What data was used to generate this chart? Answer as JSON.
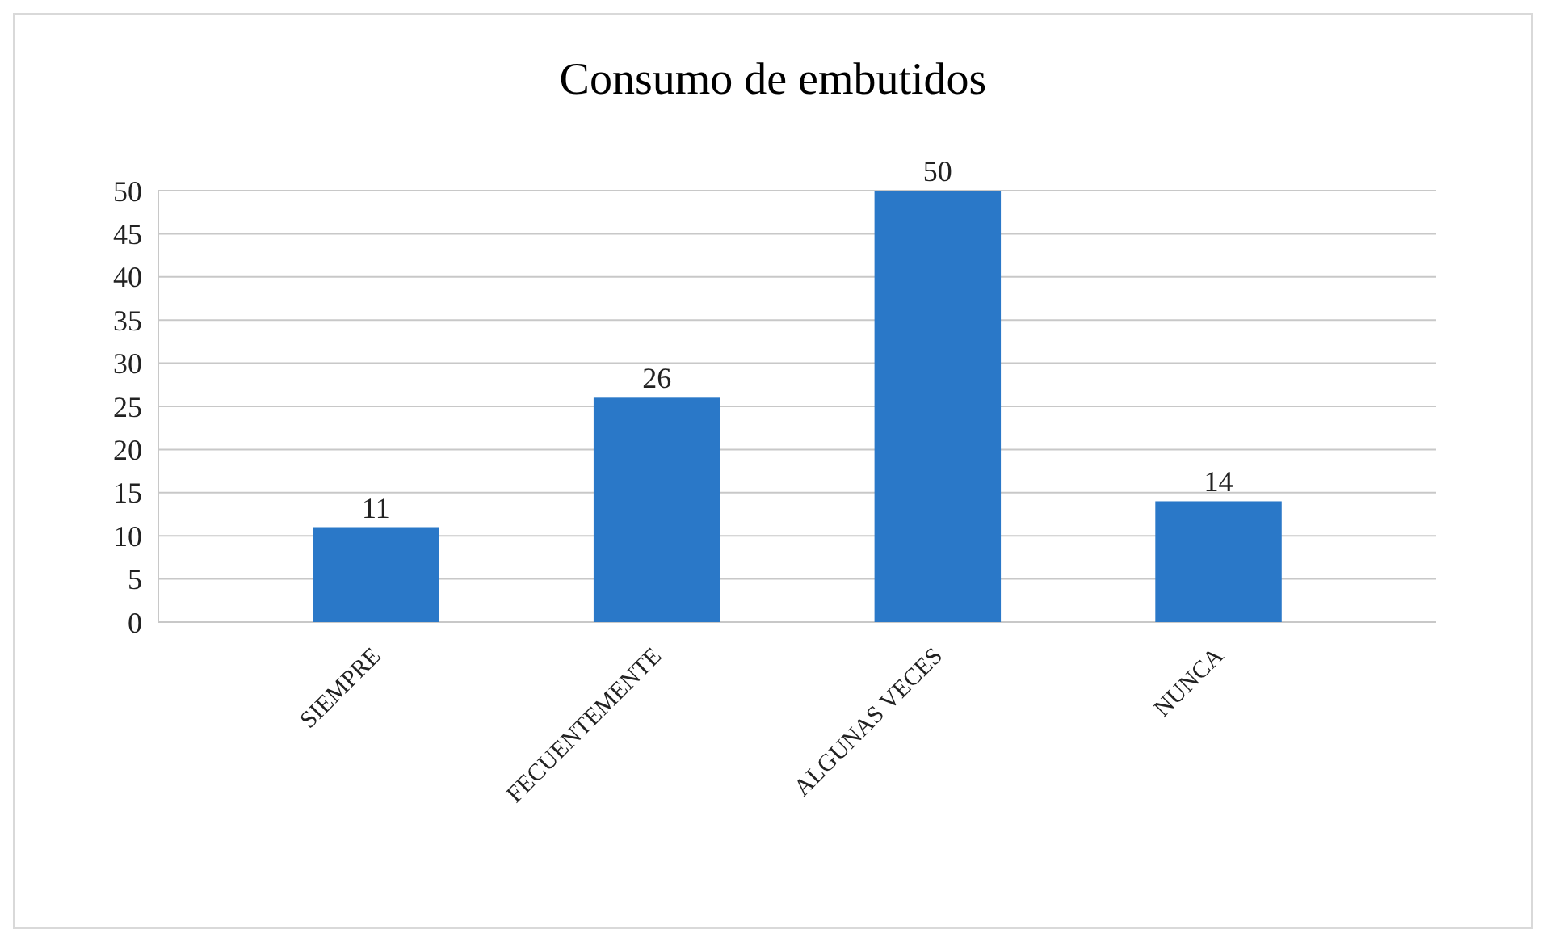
{
  "chart_data": {
    "type": "bar",
    "title": "Consumo de embutidos",
    "categories": [
      "SIEMPRE",
      "FECUENTEMENTE",
      "ALGUNAS VECES",
      "NUNCA"
    ],
    "values": [
      11,
      26,
      50,
      14
    ],
    "color": "#2a78c8",
    "ylim": [
      0,
      50
    ],
    "yticks": [
      0,
      5,
      10,
      15,
      20,
      25,
      30,
      35,
      40,
      45,
      50
    ],
    "grid": "y",
    "data_labels": true
  }
}
